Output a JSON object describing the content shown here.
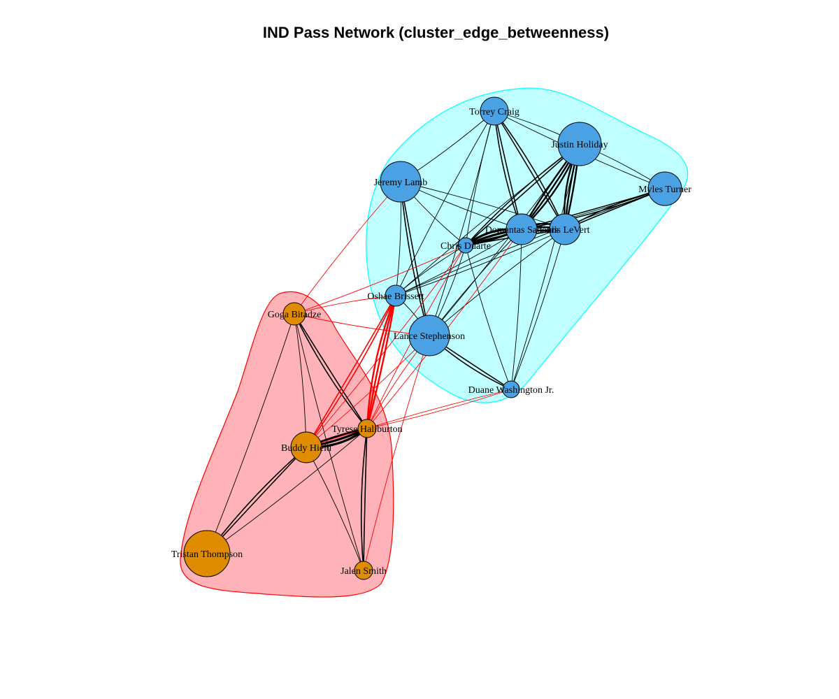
{
  "title": "IND Pass Network (cluster_edge_betweenness)",
  "colors": {
    "cluster_blue_fill": "#bfffff",
    "cluster_blue_border": "#00ffff",
    "cluster_red_fill": "#ffb3b8",
    "cluster_red_border": "#ff0000",
    "node_blue": "#4aa1e4",
    "node_orange": "#e08c00",
    "edge_within": "#000000",
    "edge_between": "#ff0000"
  },
  "clusters": [
    {
      "id": "blue",
      "members": [
        "Torrey Craig",
        "Justin Holiday",
        "Jeremy Lamb",
        "Myles Turner",
        "Domantas Sabonis",
        "Caris LeVert",
        "Chris Duarte",
        "Oshae Brissett",
        "Lance Stephenson",
        "Duane Washington Jr."
      ]
    },
    {
      "id": "red",
      "members": [
        "Goga Bitadze",
        "Tyrese Haliburton",
        "Buddy Hield",
        "Tristan Thompson",
        "Jalen Smith"
      ]
    }
  ],
  "nodes": [
    {
      "id": "torrey",
      "label": "Torrey Craig",
      "cluster": "blue"
    },
    {
      "id": "justin",
      "label": "Justin Holiday",
      "cluster": "blue"
    },
    {
      "id": "jeremy",
      "label": "Jeremy Lamb",
      "cluster": "blue"
    },
    {
      "id": "myles",
      "label": "Myles Turner",
      "cluster": "blue"
    },
    {
      "id": "domantas",
      "label": "Domantas Sabonis",
      "cluster": "blue"
    },
    {
      "id": "caris",
      "label": "Caris LeVert",
      "cluster": "blue"
    },
    {
      "id": "chris",
      "label": "Chris Duarte",
      "cluster": "blue"
    },
    {
      "id": "oshae",
      "label": "Oshae Brissett",
      "cluster": "blue"
    },
    {
      "id": "lance",
      "label": "Lance Stephenson",
      "cluster": "blue"
    },
    {
      "id": "duane",
      "label": "Duane Washington Jr.",
      "cluster": "blue"
    },
    {
      "id": "goga",
      "label": "Goga Bitadze",
      "cluster": "red"
    },
    {
      "id": "tyrese",
      "label": "Tyrese Haliburton",
      "cluster": "red"
    },
    {
      "id": "buddy",
      "label": "Buddy Hield",
      "cluster": "red"
    },
    {
      "id": "tristan",
      "label": "Tristan Thompson",
      "cluster": "red"
    },
    {
      "id": "jalen",
      "label": "Jalen Smith",
      "cluster": "red"
    }
  ],
  "edges": [
    [
      "torrey",
      "justin",
      1
    ],
    [
      "torrey",
      "domantas",
      2
    ],
    [
      "torrey",
      "caris",
      2
    ],
    [
      "torrey",
      "chris",
      1
    ],
    [
      "torrey",
      "lance",
      1
    ],
    [
      "torrey",
      "oshae",
      1
    ],
    [
      "torrey",
      "jeremy",
      1
    ],
    [
      "torrey",
      "myles",
      1
    ],
    [
      "justin",
      "domantas",
      3
    ],
    [
      "justin",
      "caris",
      3
    ],
    [
      "justin",
      "myles",
      1
    ],
    [
      "justin",
      "chris",
      2
    ],
    [
      "justin",
      "lance",
      1
    ],
    [
      "justin",
      "oshae",
      1
    ],
    [
      "justin",
      "duane",
      1
    ],
    [
      "jeremy",
      "domantas",
      1
    ],
    [
      "jeremy",
      "caris",
      1
    ],
    [
      "jeremy",
      "chris",
      1
    ],
    [
      "jeremy",
      "oshae",
      1
    ],
    [
      "jeremy",
      "lance",
      2
    ],
    [
      "myles",
      "domantas",
      2
    ],
    [
      "myles",
      "caris",
      2
    ],
    [
      "myles",
      "chris",
      1
    ],
    [
      "myles",
      "oshae",
      1
    ],
    [
      "domantas",
      "caris",
      3
    ],
    [
      "domantas",
      "chris",
      4
    ],
    [
      "domantas",
      "oshae",
      1
    ],
    [
      "domantas",
      "lance",
      1
    ],
    [
      "domantas",
      "duane",
      1
    ],
    [
      "caris",
      "chris",
      2
    ],
    [
      "caris",
      "oshae",
      1
    ],
    [
      "caris",
      "lance",
      1
    ],
    [
      "caris",
      "duane",
      1
    ],
    [
      "chris",
      "oshae",
      1
    ],
    [
      "chris",
      "lance",
      1
    ],
    [
      "chris",
      "duane",
      1
    ],
    [
      "oshae",
      "lance",
      1
    ],
    [
      "lance",
      "duane",
      2
    ],
    [
      "goga",
      "buddy",
      1
    ],
    [
      "goga",
      "tyrese",
      2
    ],
    [
      "goga",
      "tristan",
      1
    ],
    [
      "goga",
      "jalen",
      1
    ],
    [
      "tyrese",
      "buddy",
      4
    ],
    [
      "tyrese",
      "jalen",
      2
    ],
    [
      "tyrese",
      "tristan",
      1
    ],
    [
      "buddy",
      "tristan",
      2
    ],
    [
      "buddy",
      "jalen",
      1
    ],
    [
      "jeremy",
      "goga",
      1
    ],
    [
      "chris",
      "goga",
      1
    ],
    [
      "chris",
      "tyrese",
      1
    ],
    [
      "chris",
      "buddy",
      1
    ],
    [
      "oshae",
      "tyrese",
      3
    ],
    [
      "oshae",
      "buddy",
      2
    ],
    [
      "oshae",
      "goga",
      1
    ],
    [
      "lance",
      "goga",
      1
    ],
    [
      "lance",
      "tyrese",
      1
    ],
    [
      "lance",
      "buddy",
      1
    ],
    [
      "lance",
      "jalen",
      1
    ],
    [
      "duane",
      "tyrese",
      1
    ],
    [
      "duane",
      "buddy",
      1
    ],
    [
      "domantas",
      "tyrese",
      1
    ]
  ]
}
